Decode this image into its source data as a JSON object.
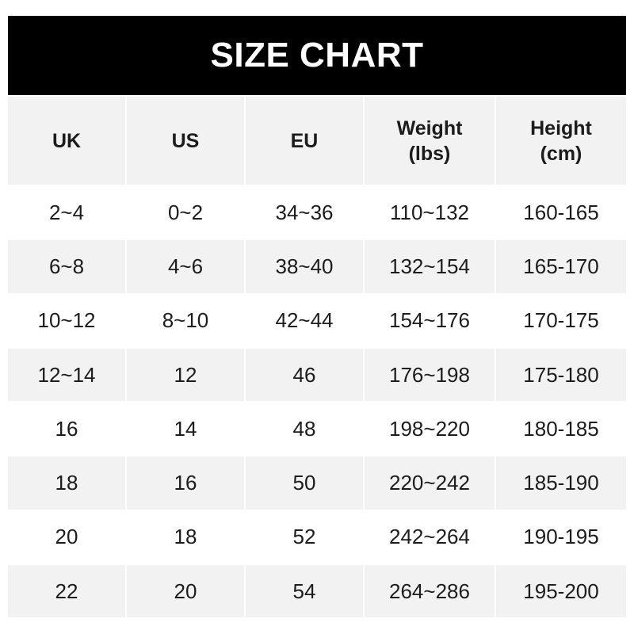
{
  "title": "SIZE CHART",
  "headers": [
    [
      "UK"
    ],
    [
      "US"
    ],
    [
      "EU"
    ],
    [
      "Weight",
      "(lbs)"
    ],
    [
      "Height",
      "(cm)"
    ]
  ],
  "rows": [
    [
      "2~4",
      "0~2",
      "34~36",
      "110~132",
      "160-165"
    ],
    [
      "6~8",
      "4~6",
      "38~40",
      "132~154",
      "165-170"
    ],
    [
      "10~12",
      "8~10",
      "42~44",
      "154~176",
      "170-175"
    ],
    [
      "12~14",
      "12",
      "46",
      "176~198",
      "175-180"
    ],
    [
      "16",
      "14",
      "48",
      "198~220",
      "180-185"
    ],
    [
      "18",
      "16",
      "50",
      "220~242",
      "185-190"
    ],
    [
      "20",
      "18",
      "52",
      "242~264",
      "190-195"
    ],
    [
      "22",
      "20",
      "54",
      "264~286",
      "195-200"
    ]
  ],
  "colors": {
    "title_bg": "#000000",
    "stripe": "#f2f2f2",
    "text": "#1c1c1c"
  }
}
